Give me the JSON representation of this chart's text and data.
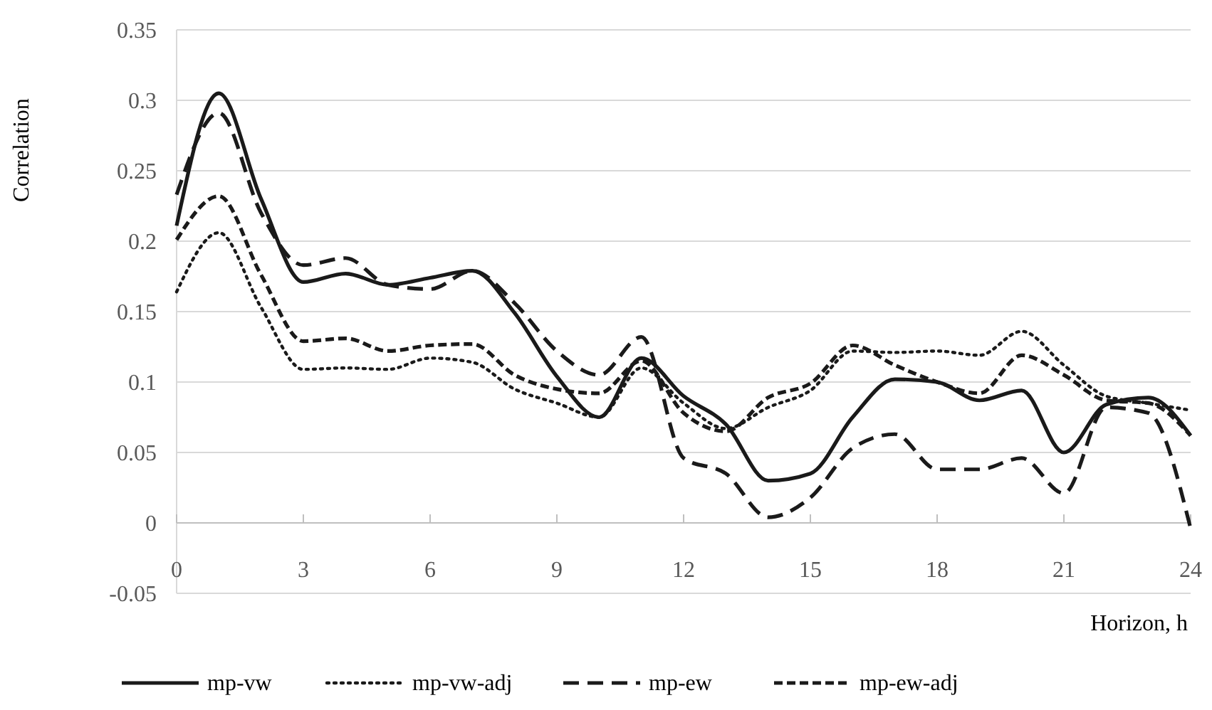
{
  "chart_data": {
    "type": "line",
    "xlabel": "Horizon, h",
    "ylabel": "Correlation",
    "x": [
      0,
      1,
      2,
      3,
      4,
      5,
      6,
      7,
      8,
      9,
      10,
      11,
      12,
      13,
      14,
      15,
      16,
      17,
      18,
      19,
      20,
      21,
      22,
      23,
      24
    ],
    "xlim": [
      0,
      24
    ],
    "xticks": [
      0,
      3,
      6,
      9,
      12,
      15,
      18,
      21,
      24
    ],
    "ylim": [
      -0.05,
      0.35
    ],
    "yticks": [
      -0.05,
      0,
      0.05,
      0.1,
      0.15,
      0.2,
      0.25,
      0.3,
      0.35
    ],
    "grid": "y",
    "legend": "bottom",
    "marker": "none",
    "series": [
      {
        "name": "mp-vw",
        "color": "#1a1a1a",
        "line_style": "solid",
        "values": [
          0.211,
          0.305,
          0.23,
          0.171,
          0.177,
          0.169,
          0.174,
          0.179,
          0.149,
          0.104,
          0.075,
          0.117,
          0.09,
          0.07,
          0.03,
          0.035,
          0.075,
          0.102,
          0.1,
          0.087,
          0.094,
          0.05,
          0.084,
          0.089,
          0.062
        ]
      },
      {
        "name": "mp-vw-adj",
        "color": "#1a1a1a",
        "line_style": "dotted",
        "values": [
          0.164,
          0.206,
          0.153,
          0.109,
          0.11,
          0.109,
          0.117,
          0.114,
          0.095,
          0.085,
          0.075,
          0.11,
          0.085,
          0.067,
          0.082,
          0.094,
          0.122,
          0.121,
          0.122,
          0.119,
          0.136,
          0.112,
          0.09,
          0.085,
          0.08
        ]
      },
      {
        "name": "mp-ew",
        "color": "#1a1a1a",
        "line_style": "dashed",
        "values": [
          0.233,
          0.291,
          0.22,
          0.183,
          0.188,
          0.169,
          0.166,
          0.179,
          0.156,
          0.122,
          0.105,
          0.132,
          0.046,
          0.035,
          0.004,
          0.018,
          0.053,
          0.063,
          0.038,
          0.038,
          0.046,
          0.021,
          0.082,
          0.078,
          -0.004
        ]
      },
      {
        "name": "mp-ew-adj",
        "color": "#1a1a1a",
        "line_style": "dashed",
        "values": [
          0.201,
          0.232,
          0.176,
          0.129,
          0.131,
          0.122,
          0.126,
          0.127,
          0.105,
          0.095,
          0.092,
          0.115,
          0.078,
          0.065,
          0.089,
          0.099,
          0.126,
          0.112,
          0.1,
          0.092,
          0.119,
          0.105,
          0.087,
          0.085,
          0.062
        ]
      }
    ]
  }
}
